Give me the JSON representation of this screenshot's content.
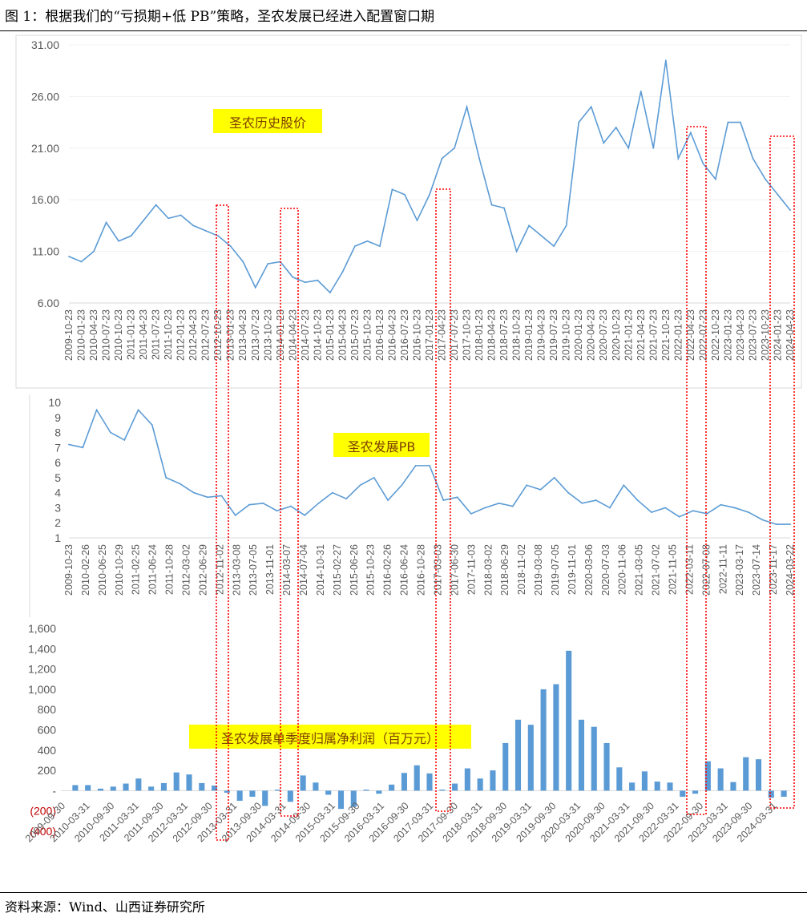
{
  "title": "图 1：根据我们的“亏损期+低 PB”策略，圣农发展已经进入配置窗口期",
  "source": "资料来源：Wind、山西证券研究所",
  "colors": {
    "line": "#5b9bd5",
    "bar": "#5b9bd5",
    "highlight": "#ffff00",
    "box": "#ff0000",
    "negative": "#c00000"
  },
  "chart_data": [
    {
      "type": "line",
      "annotation": "圣农历史股价",
      "ylim": [
        6,
        31
      ],
      "yticks": [
        "31.00",
        "26.00",
        "21.00",
        "16.00",
        "11.00",
        "6.00"
      ],
      "xticks": [
        "2009-10-23",
        "2010-01-23",
        "2010-04-23",
        "2010-07-23",
        "2010-10-23",
        "2011-01-23",
        "2011-04-23",
        "2011-07-23",
        "2011-10-23",
        "2012-01-23",
        "2012-04-23",
        "2012-07-23",
        "2012-10-23",
        "2013-01-23",
        "2013-04-23",
        "2013-07-23",
        "2013-10-23",
        "2014-01-23",
        "2014-04-23",
        "2014-07-23",
        "2014-10-23",
        "2015-01-23",
        "2015-04-23",
        "2015-07-23",
        "2015-10-23",
        "2016-01-23",
        "2016-04-23",
        "2016-07-23",
        "2016-10-23",
        "2017-01-23",
        "2017-04-23",
        "2017-07-23",
        "2017-10-23",
        "2018-01-23",
        "2018-04-23",
        "2018-07-23",
        "2018-10-23",
        "2019-01-23",
        "2019-04-23",
        "2019-07-23",
        "2019-10-23",
        "2020-01-23",
        "2020-04-23",
        "2020-07-23",
        "2020-10-23",
        "2021-01-23",
        "2021-04-23",
        "2021-07-23",
        "2021-10-23",
        "2022-01-23",
        "2022-04-23",
        "2022-07-23",
        "2022-10-23",
        "2023-01-23",
        "2023-04-23",
        "2023-07-23",
        "2023-10-23",
        "2024-01-23",
        "2024-04-23"
      ],
      "series": [
        {
          "values": [
            10.5,
            10.0,
            11.0,
            13.8,
            12.0,
            12.5,
            14.0,
            15.5,
            14.2,
            14.5,
            13.5,
            13.0,
            12.5,
            11.5,
            10.0,
            7.5,
            9.8,
            10.0,
            8.5,
            8.0,
            8.2,
            7.0,
            9.0,
            11.5,
            12.0,
            11.5,
            17.0,
            16.5,
            14.0,
            16.5,
            20.0,
            21.0,
            25.0,
            20.0,
            15.5,
            15.2,
            11.0,
            13.5,
            12.5,
            11.5,
            13.5,
            23.5,
            25.0,
            21.5,
            23.0,
            21.0,
            26.5,
            21.0,
            29.5,
            20.0,
            22.5,
            19.5,
            18.0,
            23.5,
            23.5,
            20.0,
            18.0,
            16.5,
            15.0
          ]
        }
      ]
    },
    {
      "type": "line",
      "annotation": "圣农发展PB",
      "ylim": [
        1,
        10
      ],
      "yticks": [
        "10",
        "9",
        "8",
        "7",
        "6",
        "5",
        "4",
        "3",
        "2",
        "1"
      ],
      "xticks": [
        "2009-10-23",
        "2010-02-26",
        "2010-06-25",
        "2010-10-29",
        "2011-02-25",
        "2011-06-24",
        "2011-10-28",
        "2012-03-02",
        "2012-06-29",
        "2012-11-02",
        "2013-03-08",
        "2013-07-05",
        "2013-11-01",
        "2014-03-07",
        "2014-07-04",
        "2014-10-31",
        "2015-02-27",
        "2015-06-26",
        "2015-10-23",
        "2016-02-26",
        "2016-06-24",
        "2016-10-28",
        "2017-03-03",
        "2017-06-30",
        "2017-11-03",
        "2018-03-02",
        "2018-06-29",
        "2018-11-02",
        "2019-03-08",
        "2019-07-05",
        "2019-11-01",
        "2020-03-06",
        "2020-07-03",
        "2020-11-06",
        "2021-03-05",
        "2021-07-02",
        "2021-11-05",
        "2022-03-11",
        "2022-07-08",
        "2022-11-11",
        "2023-03-17",
        "2023-07-14",
        "2023-11-17",
        "2024-03-22"
      ],
      "series": [
        {
          "values": [
            7.2,
            7.0,
            9.5,
            8.0,
            7.5,
            9.5,
            8.5,
            5.0,
            4.6,
            4.0,
            3.7,
            3.8,
            2.5,
            3.2,
            3.3,
            2.8,
            3.1,
            2.5,
            3.3,
            4.0,
            3.6,
            4.5,
            5.0,
            3.5,
            4.5,
            5.8,
            5.8,
            3.5,
            3.7,
            2.6,
            3.0,
            3.3,
            3.1,
            4.5,
            4.2,
            5.0,
            4.0,
            3.3,
            3.5,
            3.0,
            4.5,
            3.5,
            2.7,
            3.0,
            2.4,
            2.8,
            2.6,
            3.2,
            3.0,
            2.7,
            2.2,
            1.9,
            1.9
          ]
        }
      ]
    },
    {
      "type": "bar",
      "annotation": "圣农发展单季度归属净利润（百万元）",
      "ylim": [
        -400,
        1600
      ],
      "yticks": [
        "1,600",
        "1,400",
        "1,200",
        "1,000",
        "800",
        "600",
        "400",
        "200",
        "-",
        "(200)",
        "(400)"
      ],
      "xticks": [
        "2009-09-30",
        "2010-03-31",
        "2010-09-30",
        "2011-03-31",
        "2011-09-30",
        "2012-03-31",
        "2012-09-30",
        "2013-03-31",
        "2013-09-30",
        "2014-03-31",
        "2014-09-30",
        "2015-03-31",
        "2015-09-30",
        "2016-03-31",
        "2016-09-30",
        "2017-03-31",
        "2017-09-30",
        "2018-03-31",
        "2018-09-30",
        "2019-03-31",
        "2019-09-30",
        "2020-03-31",
        "2020-09-30",
        "2021-03-31",
        "2021-09-30",
        "2022-03-31",
        "2022-09-30",
        "2023-03-31",
        "2023-09-30",
        "2024-03-31"
      ],
      "values": [
        55,
        55,
        20,
        40,
        70,
        120,
        40,
        75,
        180,
        160,
        75,
        50,
        -20,
        -100,
        -60,
        -150,
        10,
        -110,
        150,
        80,
        -40,
        -180,
        -160,
        10,
        -30,
        60,
        175,
        250,
        170,
        10,
        70,
        220,
        120,
        200,
        470,
        700,
        650,
        1000,
        1050,
        1380,
        700,
        630,
        470,
        230,
        80,
        190,
        90,
        80,
        -60,
        -30,
        290,
        220,
        85,
        330,
        310,
        -70,
        -60
      ]
    }
  ]
}
